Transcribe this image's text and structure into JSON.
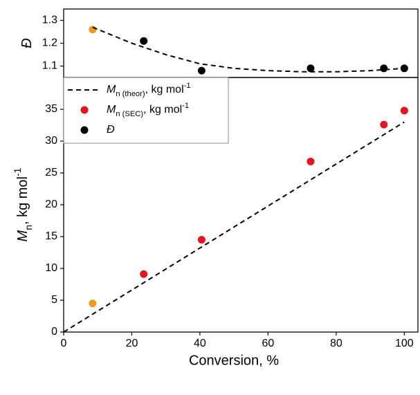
{
  "chart_data": [
    {
      "type": "scatter",
      "y_label": [
        {
          "text": "Đ",
          "style": "italic"
        }
      ],
      "xlim": [
        0,
        104
      ],
      "ylim": [
        1.05,
        1.35
      ],
      "yticks": [
        1.1,
        1.2,
        1.3
      ],
      "series": [
        {
          "name": [
            {
              "text": "Đ",
              "style": "italic"
            }
          ],
          "kind": "points",
          "color": "#000000",
          "colors": [
            "#f39a1e",
            "#000000",
            "#000000",
            "#000000",
            "#000000",
            "#000000"
          ],
          "x": [
            8.5,
            23.5,
            40.5,
            72.5,
            94,
            100
          ],
          "values": [
            1.26,
            1.21,
            1.08,
            1.09,
            1.09,
            1.09
          ]
        },
        {
          "kind": "line",
          "dash": true,
          "color": "#000000",
          "x": [
            8.5,
            20,
            30,
            40,
            50,
            60,
            70,
            80,
            90,
            100
          ],
          "values": [
            1.27,
            1.2,
            1.15,
            1.11,
            1.09,
            1.08,
            1.075,
            1.075,
            1.08,
            1.09
          ]
        }
      ]
    },
    {
      "type": "scatter",
      "x_label": "Conversion, %",
      "y_label": [
        {
          "text": "M",
          "style": "italic"
        },
        {
          "text": "n",
          "style": "sub"
        },
        {
          "text": ", kg mol"
        },
        {
          "text": "-1",
          "style": "sup"
        }
      ],
      "xlim": [
        0,
        104
      ],
      "ylim": [
        0,
        40
      ],
      "xticks": [
        0,
        20,
        40,
        60,
        80,
        100
      ],
      "yticks": [
        0,
        5,
        10,
        15,
        20,
        25,
        30,
        35
      ],
      "series": [
        {
          "name": [
            {
              "text": "M",
              "style": "italic"
            },
            {
              "text": "n (theor)",
              "style": "sub"
            },
            {
              "text": ", kg mol"
            },
            {
              "text": "-1",
              "style": "sup"
            }
          ],
          "kind": "line",
          "dash": true,
          "color": "#000000",
          "x": [
            0,
            100
          ],
          "values": [
            0,
            33
          ]
        },
        {
          "name": [
            {
              "text": "M",
              "style": "italic"
            },
            {
              "text": "n (SEC)",
              "style": "sub"
            },
            {
              "text": ", kg mol"
            },
            {
              "text": "-1",
              "style": "sup"
            }
          ],
          "kind": "points",
          "color": "#e8141b",
          "colors": [
            "#f39a1e",
            "#e8141b",
            "#e8141b",
            "#e8141b",
            "#e8141b",
            "#e8141b"
          ],
          "x": [
            8.5,
            23.5,
            40.5,
            72.5,
            94,
            100
          ],
          "values": [
            4.5,
            9.1,
            14.5,
            26.8,
            32.6,
            34.8
          ]
        }
      ]
    }
  ]
}
